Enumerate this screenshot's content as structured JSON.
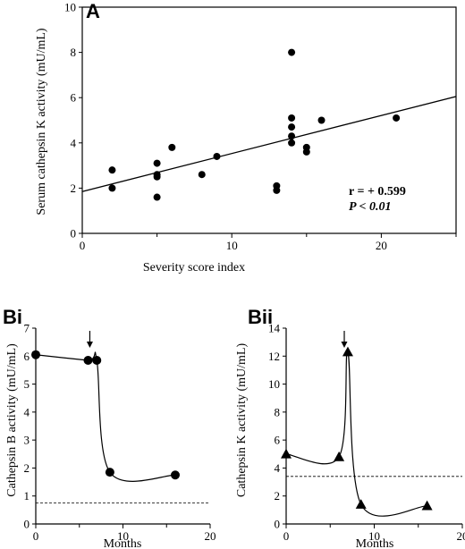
{
  "chart_data": [
    {
      "panel": "A",
      "type": "scatter",
      "xlabel": "Severity score index",
      "ylabel": "Serum cathepsin K activity (mU/mL)",
      "xlim": [
        0,
        25
      ],
      "ylim": [
        0,
        10
      ],
      "xticks": [
        0,
        10,
        20
      ],
      "yticks": [
        0,
        2,
        4,
        6,
        8,
        10
      ],
      "minor_xticks": [
        5,
        15,
        25
      ],
      "points": [
        {
          "x": 2,
          "y": 2.8
        },
        {
          "x": 2,
          "y": 2.0
        },
        {
          "x": 5,
          "y": 3.1
        },
        {
          "x": 5,
          "y": 2.6
        },
        {
          "x": 5,
          "y": 2.5
        },
        {
          "x": 5,
          "y": 1.6
        },
        {
          "x": 6,
          "y": 3.8
        },
        {
          "x": 8,
          "y": 2.6
        },
        {
          "x": 9,
          "y": 3.4
        },
        {
          "x": 13,
          "y": 2.1
        },
        {
          "x": 13,
          "y": 1.9
        },
        {
          "x": 14,
          "y": 8.0
        },
        {
          "x": 14,
          "y": 5.1
        },
        {
          "x": 14,
          "y": 4.7
        },
        {
          "x": 14,
          "y": 4.3
        },
        {
          "x": 14,
          "y": 4.0
        },
        {
          "x": 15,
          "y": 3.8
        },
        {
          "x": 15,
          "y": 3.6
        },
        {
          "x": 16,
          "y": 5.0
        },
        {
          "x": 21,
          "y": 5.1
        }
      ],
      "regression_line": {
        "x": [
          0,
          25
        ],
        "y": [
          1.85,
          6.05
        ]
      },
      "annotations": [
        "r = + 0.599",
        "P < 0.01"
      ],
      "marker": "circle",
      "grid": false
    },
    {
      "panel": "Bi",
      "type": "line",
      "xlabel": "Months",
      "ylabel": "Cathepsin B activity (mU/mL)",
      "xlim": [
        0,
        20
      ],
      "ylim": [
        0,
        7
      ],
      "xticks": [
        0,
        10,
        20
      ],
      "yticks": [
        0,
        1,
        2,
        3,
        4,
        5,
        6,
        7
      ],
      "minor_xticks": [
        5,
        15
      ],
      "series": [
        {
          "x": [
            0,
            6,
            7,
            8.5,
            16
          ],
          "y": [
            6.05,
            5.85,
            5.85,
            1.85,
            1.75
          ],
          "marker": "circle"
        }
      ],
      "reference_line": 0.75,
      "arrow_at_x": 6.2,
      "grid": false
    },
    {
      "panel": "Bii",
      "type": "line",
      "xlabel": "Months",
      "ylabel": "Cathepsin K activity (mU/mL)",
      "xlim": [
        0,
        20
      ],
      "ylim": [
        0,
        14
      ],
      "xticks": [
        0,
        10,
        20
      ],
      "yticks": [
        0,
        2,
        4,
        6,
        8,
        10,
        12,
        14
      ],
      "minor_xticks": [
        5,
        15
      ],
      "series": [
        {
          "x": [
            0,
            6,
            7,
            8.5,
            16
          ],
          "y": [
            5.0,
            4.8,
            12.3,
            1.4,
            1.3
          ],
          "marker": "triangle"
        }
      ],
      "reference_line": 3.4,
      "arrow_at_x": 6.6,
      "grid": false
    }
  ]
}
